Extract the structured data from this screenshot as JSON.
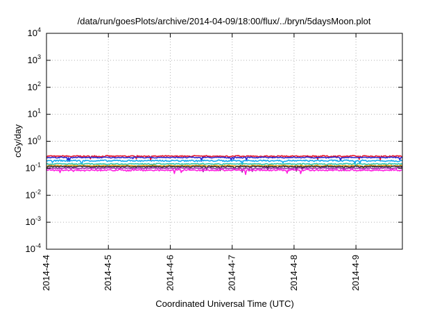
{
  "chart_data": {
    "type": "line",
    "title": "/data/run/goesPlots/archive/2014-04-09/18:00/flux/../bryn/5daysMoon.plot",
    "xlabel": "Coordinated Universal Time (UTC)",
    "ylabel": "cGy/day",
    "yscale": "log",
    "ylim": [
      0.0001,
      10000
    ],
    "y_ticks": [
      {
        "value": 0.0001,
        "base": "10",
        "exp": "-4"
      },
      {
        "value": 0.001,
        "base": "10",
        "exp": "-3"
      },
      {
        "value": 0.01,
        "base": "10",
        "exp": "-2"
      },
      {
        "value": 0.1,
        "base": "10",
        "exp": "-1"
      },
      {
        "value": 1,
        "base": "10",
        "exp": "0"
      },
      {
        "value": 10,
        "base": "10",
        "exp": "1"
      },
      {
        "value": 100,
        "base": "10",
        "exp": "2"
      },
      {
        "value": 1000,
        "base": "10",
        "exp": "3"
      },
      {
        "value": 10000,
        "base": "10",
        "exp": "4"
      }
    ],
    "xlim": [
      "2014-04-04T00:00",
      "2014-04-09T18:00"
    ],
    "x_ticks": [
      "2014-4-4",
      "2014-4-5",
      "2014-4-6",
      "2014-4-7",
      "2014-4-8",
      "2014-4-9"
    ],
    "grid": true,
    "legend": "none",
    "series": [
      {
        "color": "#e8192c",
        "level": 0.28,
        "noise": 0.05
      },
      {
        "color": "#2a2ad0",
        "level": 0.25,
        "noise": 0.04
      },
      {
        "color": "#18a8f0",
        "level": 0.19,
        "noise": 0.06
      },
      {
        "color": "#2ec8b0",
        "level": 0.145,
        "noise": 0.04
      },
      {
        "color": "#f0a020",
        "level": 0.125,
        "noise": 0.04
      },
      {
        "color": "#303030",
        "level": 0.115,
        "noise": 0.05
      },
      {
        "color": "#a030b0",
        "level": 0.1,
        "noise": 0.05
      },
      {
        "color": "#ff20e0",
        "level": 0.085,
        "noise": 0.06
      }
    ]
  }
}
